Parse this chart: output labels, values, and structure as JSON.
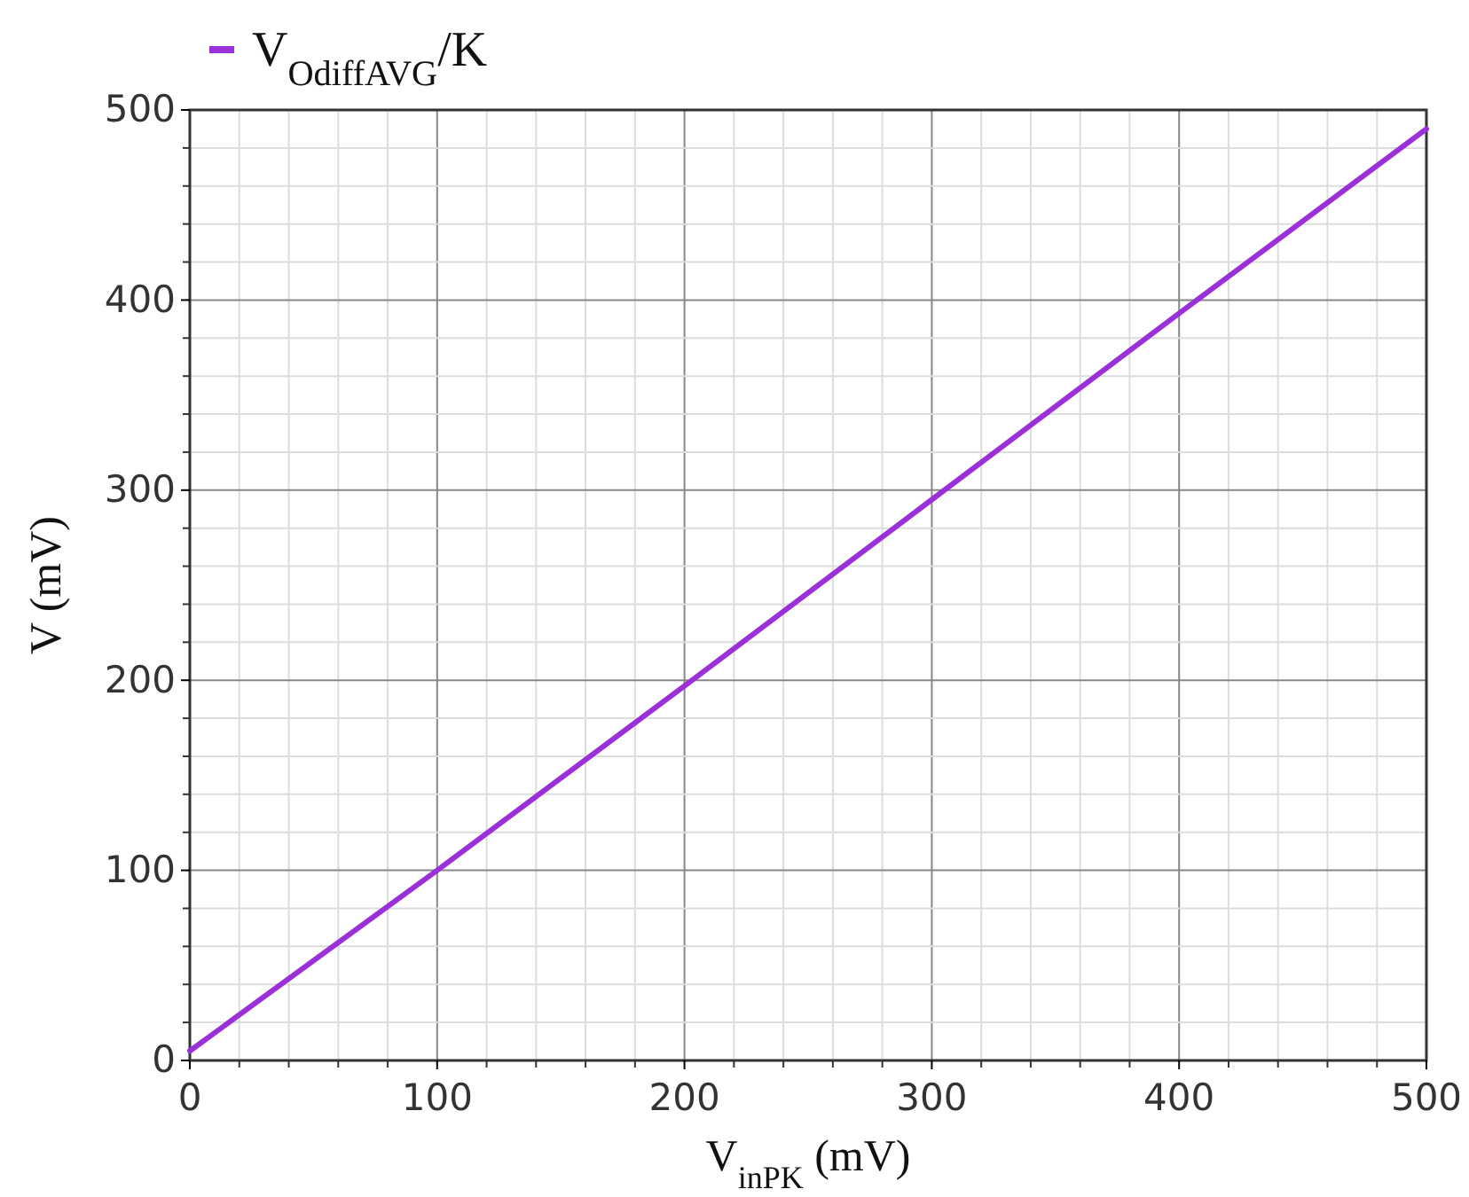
{
  "chart_data": {
    "type": "line",
    "xlabel": "V$_{inPK}$ (mV)",
    "ylabel": "V (mV)",
    "series": [
      {
        "name": "V$_{OdiffAVG}$/K",
        "color": "#9b30d9",
        "x": [
          0,
          100,
          200,
          300,
          400,
          500
        ],
        "values": [
          5,
          100,
          197,
          295,
          393,
          490
        ]
      }
    ],
    "xlim": [
      0,
      500
    ],
    "ylim": [
      0,
      500
    ],
    "xticks": [
      0,
      100,
      200,
      300,
      400,
      500
    ],
    "yticks": [
      0,
      100,
      200,
      300,
      400,
      500
    ],
    "grid": true,
    "legend": "top left",
    "marker": "none",
    "line_style": "solid"
  }
}
